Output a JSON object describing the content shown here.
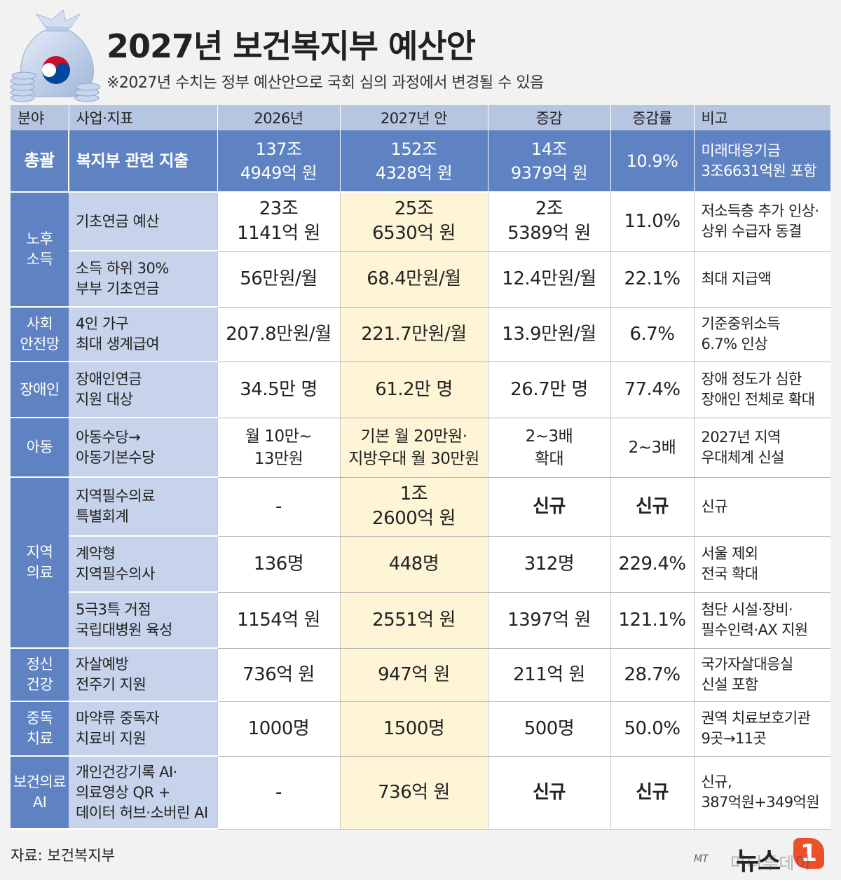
{
  "header": {
    "title": "2027년 보건복지부 예산안",
    "subtitle": "※2027년 수치는 정부 예산안으로 국회 심의 과정에서 변경될 수 있음"
  },
  "columns": [
    "분야",
    "사업·지표",
    "2026년",
    "2027년 안",
    "증감",
    "증감률",
    "비고"
  ],
  "total": {
    "category": "총괄",
    "item": "복지부 관련 지출",
    "y2026": [
      "137조",
      "4949억 원"
    ],
    "y2027": [
      "152조",
      "4328억 원"
    ],
    "diff": [
      "14조",
      "9379억 원"
    ],
    "rate": "10.9%",
    "note": [
      "미래대응기금",
      "3조6631억원 포함"
    ]
  },
  "categories": {
    "elderly": [
      "노후",
      "소득"
    ],
    "safety": [
      "사회",
      "안전망"
    ],
    "disabled": [
      "장애인"
    ],
    "child": [
      "아동"
    ],
    "regional": [
      "지역",
      "의료"
    ],
    "mental": [
      "정신",
      "건강"
    ],
    "addiction": [
      "중독",
      "치료"
    ],
    "ai": [
      "보건의료",
      "AI"
    ]
  },
  "rows": [
    {
      "item": [
        "기초연금 예산"
      ],
      "y2026": [
        "23조",
        "1141억 원"
      ],
      "y2027": [
        "25조",
        "6530억 원"
      ],
      "diff": [
        "2조",
        "5389억 원"
      ],
      "rate": "11.0%",
      "note": [
        "저소득층 추가 인상·",
        "상위 수급자 동결"
      ]
    },
    {
      "item": [
        "소득 하위 30%",
        "부부 기초연금"
      ],
      "y2026": [
        "56만원/월"
      ],
      "y2027": [
        "68.4만원/월"
      ],
      "diff": [
        "12.4만원/월"
      ],
      "rate": "22.1%",
      "note": [
        "최대 지급액"
      ]
    },
    {
      "item": [
        "4인 가구",
        "최대 생계급여"
      ],
      "y2026": [
        "207.8만원/월"
      ],
      "y2027": [
        "221.7만원/월"
      ],
      "diff": [
        "13.9만원/월"
      ],
      "rate": "6.7%",
      "note": [
        "기준중위소득",
        "6.7% 인상"
      ]
    },
    {
      "item": [
        "장애인연금",
        "지원 대상"
      ],
      "y2026": [
        "34.5만 명"
      ],
      "y2027": [
        "61.2만 명"
      ],
      "diff": [
        "26.7만 명"
      ],
      "rate": "77.4%",
      "note": [
        "장애 정도가 심한",
        "장애인 전체로 확대"
      ]
    },
    {
      "item": [
        "아동수당→",
        "아동기본수당"
      ],
      "y2026": [
        "월 10만~",
        "13만원"
      ],
      "y2027": [
        "기본 월 20만원·",
        "지방우대 월 30만원"
      ],
      "diff": [
        "2~3배",
        "확대"
      ],
      "rate": "2~3배",
      "note": [
        "2027년 지역",
        "우대체계 신설"
      ]
    },
    {
      "item": [
        "지역필수의료",
        "특별회계"
      ],
      "y2026": [
        "-"
      ],
      "y2027": [
        "1조",
        "2600억 원"
      ],
      "diff": [
        "신규"
      ],
      "rate": "신규",
      "note": [
        "신규"
      ]
    },
    {
      "item": [
        "계약형",
        "지역필수의사"
      ],
      "y2026": [
        "136명"
      ],
      "y2027": [
        "448명"
      ],
      "diff": [
        "312명"
      ],
      "rate": "229.4%",
      "note": [
        "서울 제외",
        "전국 확대"
      ]
    },
    {
      "item": [
        "5극3특 거점",
        "국립대병원 육성"
      ],
      "y2026": [
        "1154억 원"
      ],
      "y2027": [
        "2551억 원"
      ],
      "diff": [
        "1397억 원"
      ],
      "rate": "121.1%",
      "note": [
        "첨단 시설·장비·",
        "필수인력·AX 지원"
      ]
    },
    {
      "item": [
        "자살예방",
        "전주기 지원"
      ],
      "y2026": [
        "736억 원"
      ],
      "y2027": [
        "947억 원"
      ],
      "diff": [
        "211억 원"
      ],
      "rate": "28.7%",
      "note": [
        "국가자살대응실",
        "신설 포함"
      ]
    },
    {
      "item": [
        "마약류 중독자",
        "치료비 지원"
      ],
      "y2026": [
        "1000명"
      ],
      "y2027": [
        "1500명"
      ],
      "diff": [
        "500명"
      ],
      "rate": "50.0%",
      "note": [
        "권역 치료보호기관",
        "9곳→11곳"
      ]
    },
    {
      "item": [
        "개인건강기록 AI·",
        "의료영상 QR +",
        "데이터 허브·소버린 AI"
      ],
      "y2026": [
        "-"
      ],
      "y2027": [
        "736억 원"
      ],
      "diff": [
        "신규"
      ],
      "rate": "신규",
      "note": [
        "신규,",
        "387억원+349억원"
      ]
    }
  ],
  "source": "자료: 보건복지부",
  "logo": {
    "prefix": "MT",
    "text": "뉴스",
    "badge": "1",
    "watermark": "머니투데이"
  },
  "colors": {
    "header_bg": "#b7c6e0",
    "category_bg": "#5f82c2",
    "item_bg": "#c6d3ea",
    "highlight": "#fdf5d6"
  }
}
